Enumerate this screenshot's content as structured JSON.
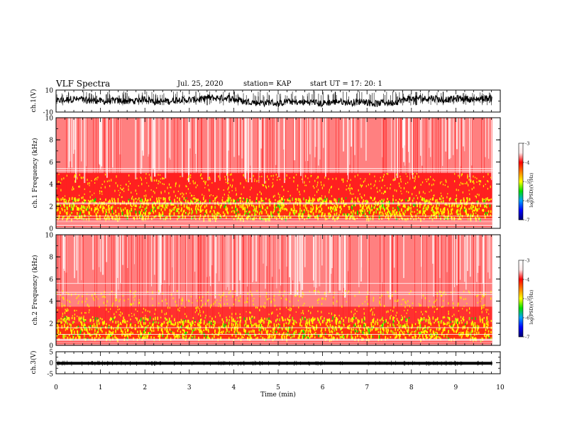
{
  "header": {
    "title": "VLF Spectra",
    "date": "Jul. 25, 2020",
    "station": "station= KAP",
    "start": "start UT = 17: 20: 1"
  },
  "chart_data": [
    {
      "type": "line",
      "panel": "ch1-waveform",
      "ylabel": "ch.1(V)",
      "ylim": [
        -10,
        10
      ],
      "yticks": [
        "10",
        "-10"
      ],
      "note": "dense noisy waveform spanning about -6 to +8 V"
    },
    {
      "type": "heatmap",
      "panel": "ch1-spectrogram",
      "ylabel": "ch.1 Frequency (kHz)",
      "ylim": [
        0,
        10
      ],
      "yticks": [
        "0",
        "2",
        "4",
        "6",
        "8",
        "10"
      ],
      "colorbar": {
        "label": "log(PSD)(V²/Hz)",
        "ticks": [
          "-3",
          "-4",
          "-5",
          "-6",
          "-7"
        ],
        "range": [
          -7,
          -3
        ]
      },
      "bands_khz": [
        {
          "range": [
            0.0,
            0.9
          ],
          "level": "alternating lines"
        },
        {
          "range": [
            0.9,
            2.2
          ],
          "level": "strongest (yellow/green)"
        },
        {
          "range": [
            2.2,
            5.0
          ],
          "level": "strong (red/yellow)"
        },
        {
          "range": [
            5.0,
            10.0
          ],
          "level": "weaker (light red)"
        }
      ],
      "tone_lines_khz": [
        0.3,
        0.6,
        1.1,
        2.2,
        2.3,
        5.2,
        5.4
      ]
    },
    {
      "type": "heatmap",
      "panel": "ch2-spectrogram",
      "ylabel": "ch.2 Frequency (kHz)",
      "ylim": [
        0,
        10
      ],
      "yticks": [
        "0",
        "2",
        "4",
        "6",
        "8",
        "10"
      ],
      "colorbar": {
        "label": "log(PSD)(V²/Hz)",
        "ticks": [
          "-3",
          "-4",
          "-5",
          "-6",
          "-7"
        ],
        "range": [
          -7,
          -3
        ]
      },
      "bands_khz": [
        {
          "range": [
            0.0,
            0.6
          ],
          "level": "alternating lines"
        },
        {
          "range": [
            0.6,
            2.0
          ],
          "level": "strongest (yellow/green)"
        },
        {
          "range": [
            2.0,
            3.5
          ],
          "level": "strong (red)"
        },
        {
          "range": [
            3.5,
            10.0
          ],
          "level": "weaker (light red)"
        }
      ],
      "tone_lines_khz": [
        0.5,
        1.0,
        1.6,
        4.6,
        4.8,
        5.6
      ]
    },
    {
      "type": "line",
      "panel": "ch3-waveform",
      "ylabel": "ch.3(V)",
      "ylim": [
        -5,
        5
      ],
      "yticks": [
        "5",
        "0",
        "-5"
      ],
      "note": "thick flat trace near -0.2 V"
    }
  ],
  "xaxis": {
    "label": "Time (min)",
    "xlim": [
      0,
      10
    ],
    "ticks": [
      "0",
      "1",
      "2",
      "3",
      "4",
      "5",
      "6",
      "7",
      "8",
      "9",
      "10"
    ],
    "data_end_min": 9.82
  },
  "colors": {
    "colormap": [
      "#000070",
      "#0000ff",
      "#00a0ff",
      "#00e000",
      "#ffff00",
      "#ff8000",
      "#ff0000",
      "#ffe8e8",
      "#ffffff"
    ]
  }
}
